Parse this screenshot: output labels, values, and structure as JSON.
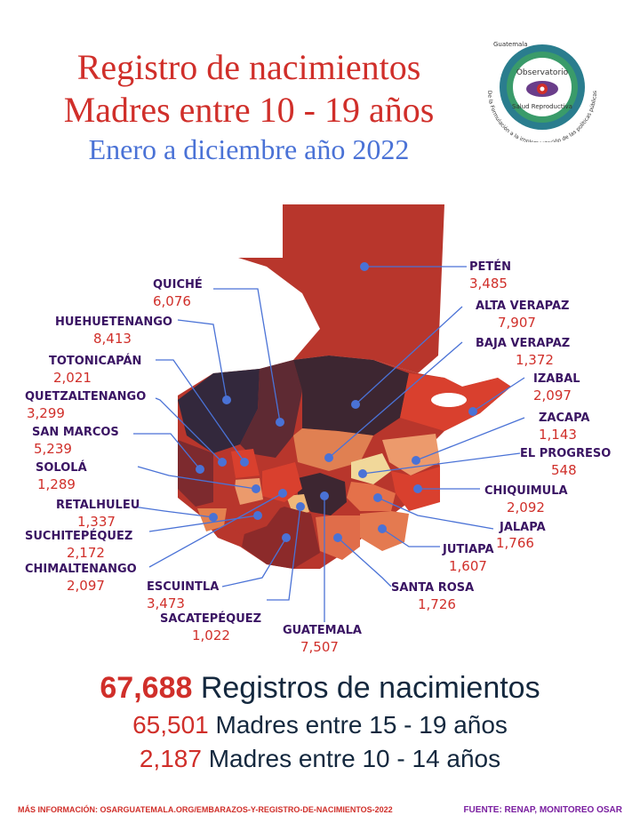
{
  "title": {
    "line1": "Registro de nacimientos",
    "line2": "Madres entre 10 - 19 años",
    "line3": "Enero a diciembre año 2022"
  },
  "logo": {
    "top": "Guatemala",
    "name": "Observatorio",
    "sub": "Salud Reproductiva",
    "ring": "De la Formulación a la implementación de las políticas públicas"
  },
  "departments": [
    {
      "name": "PETÉN",
      "value": "3,485",
      "color": "#b8362c"
    },
    {
      "name": "ALTA VERAPAZ",
      "value": "7,907",
      "color": "#3d2631"
    },
    {
      "name": "BAJA VERAPAZ",
      "value": "1,372",
      "color": "#e08052"
    },
    {
      "name": "IZABAL",
      "value": "2,097",
      "color": "#d9402e"
    },
    {
      "name": "ZACAPA",
      "value": "1,143",
      "color": "#ec9a6c"
    },
    {
      "name": "EL PROGRESO",
      "value": "548",
      "color": "#f1d89a"
    },
    {
      "name": "CHIQUIMULA",
      "value": "2,092",
      "color": "#d9402e"
    },
    {
      "name": "JALAPA",
      "value": "1,766",
      "color": "#e4714a"
    },
    {
      "name": "JUTIAPA",
      "value": "1,607",
      "color": "#e47a50"
    },
    {
      "name": "SANTA ROSA",
      "value": "1,726",
      "color": "#e06d4a"
    },
    {
      "name": "GUATEMALA",
      "value": "7,507",
      "color": "#3d2631"
    },
    {
      "name": "SACATEPÉQUEZ",
      "value": "1,022",
      "color": "#f0b878"
    },
    {
      "name": "ESCUINTLA",
      "value": "3,473",
      "color": "#8c2a2a"
    },
    {
      "name": "CHIMALTENANGO",
      "value": "2,097",
      "color": "#d9402e"
    },
    {
      "name": "SUCHITEPÉQUEZ",
      "value": "2,172",
      "color": "#b8362c"
    },
    {
      "name": "RETALHULEU",
      "value": "1,337",
      "color": "#e4814f"
    },
    {
      "name": "SOLOLÁ",
      "value": "1,289",
      "color": "#eb9a6c"
    },
    {
      "name": "SAN MARCOS",
      "value": "5,239",
      "color": "#7d2a2e"
    },
    {
      "name": "QUETZALTENANGO",
      "value": "3,299",
      "color": "#b8362c"
    },
    {
      "name": "TOTONICAPÁN",
      "value": "2,021",
      "color": "#d9402e"
    },
    {
      "name": "HUEHUETENANGO",
      "value": "8,413",
      "color": "#33283c"
    },
    {
      "name": "QUICHÉ",
      "value": "6,076",
      "color": "#5e2a33"
    }
  ],
  "summary": {
    "total_value": "67,688",
    "total_label": "Registros de nacimientos",
    "age15_value": "65,501",
    "age15_label": "Madres entre 15 - 19 años",
    "age10_value": "2,187",
    "age10_label": "Madres entre 10 - 14 años"
  },
  "footer": {
    "info": "MÁS INFORMACIÓN: OSARGUATEMALA.ORG/EMBARAZOS-Y-REGISTRO-DE-NACIMIENTOS-2022",
    "source": "FUENTE: RENAP, MONITOREO OSAR"
  }
}
